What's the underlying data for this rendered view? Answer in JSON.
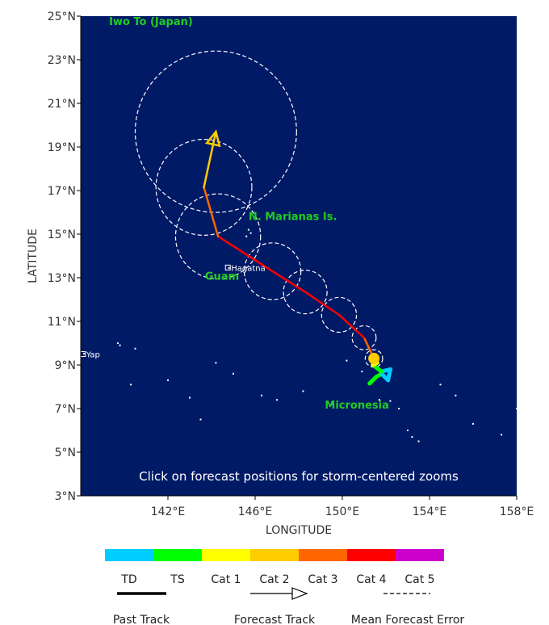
{
  "map": {
    "background_color": "#001a66",
    "land_color": "#ffffff",
    "lon_range": [
      138,
      158
    ],
    "lat_range": [
      3,
      25
    ],
    "axis": {
      "xlabel": "LONGITUDE",
      "ylabel": "LATITUDE",
      "x_ticks": [
        {
          "value": 142,
          "label": "142°E"
        },
        {
          "value": 146,
          "label": "146°E"
        },
        {
          "value": 150,
          "label": "150°E"
        },
        {
          "value": 154,
          "label": "154°E"
        },
        {
          "value": 158,
          "label": "158°E"
        }
      ],
      "y_ticks": [
        {
          "value": 25,
          "label": "25°N"
        },
        {
          "value": 23,
          "label": "23°N"
        },
        {
          "value": 21,
          "label": "21°N"
        },
        {
          "value": 19,
          "label": "19°N"
        },
        {
          "value": 17,
          "label": "17°N"
        },
        {
          "value": 15,
          "label": "15°N"
        },
        {
          "value": 13,
          "label": "13°N"
        },
        {
          "value": 11,
          "label": "11°N"
        },
        {
          "value": 9,
          "label": "9°N"
        },
        {
          "value": 7,
          "label": "7°N"
        },
        {
          "value": 5,
          "label": "5°N"
        },
        {
          "value": 3,
          "label": "3°N"
        }
      ]
    },
    "region_labels": [
      {
        "text": "Iwo To (Japan)",
        "lon": 139.3,
        "lat": 24.6
      },
      {
        "text": "N. Marianas Is.",
        "lon": 145.7,
        "lat": 15.65
      },
      {
        "text": "Guam",
        "lon": 143.7,
        "lat": 12.9
      },
      {
        "text": "Micronesia",
        "lon": 149.2,
        "lat": 7.0
      }
    ],
    "cities": [
      {
        "text": "Hagatna",
        "lon": 144.75,
        "lat": 13.47
      },
      {
        "text": "Yap",
        "lon": 138.1,
        "lat": 9.5
      }
    ],
    "islands": [
      {
        "lon": 144.8,
        "lat": 13.45
      },
      {
        "lon": 145.7,
        "lat": 15.2
      },
      {
        "lon": 145.6,
        "lat": 14.9
      },
      {
        "lon": 145.8,
        "lat": 15.05
      },
      {
        "lon": 138.15,
        "lat": 9.52
      },
      {
        "lon": 139.7,
        "lat": 10.0
      },
      {
        "lon": 139.8,
        "lat": 9.9
      },
      {
        "lon": 140.5,
        "lat": 9.75
      },
      {
        "lon": 140.3,
        "lat": 8.1
      },
      {
        "lon": 142.0,
        "lat": 8.3
      },
      {
        "lon": 143.0,
        "lat": 7.5
      },
      {
        "lon": 144.2,
        "lat": 9.1
      },
      {
        "lon": 145.0,
        "lat": 8.6
      },
      {
        "lon": 146.3,
        "lat": 7.6
      },
      {
        "lon": 147.0,
        "lat": 7.4
      },
      {
        "lon": 148.2,
        "lat": 7.8
      },
      {
        "lon": 149.5,
        "lat": 7.2
      },
      {
        "lon": 150.2,
        "lat": 9.2
      },
      {
        "lon": 150.9,
        "lat": 8.7
      },
      {
        "lon": 151.7,
        "lat": 7.4
      },
      {
        "lon": 152.2,
        "lat": 7.35
      },
      {
        "lon": 152.6,
        "lat": 7.0
      },
      {
        "lon": 153.2,
        "lat": 5.7
      },
      {
        "lon": 153.5,
        "lat": 5.5
      },
      {
        "lon": 154.5,
        "lat": 8.1
      },
      {
        "lon": 155.2,
        "lat": 7.6
      },
      {
        "lon": 156.0,
        "lat": 6.3
      },
      {
        "lon": 157.3,
        "lat": 5.8
      },
      {
        "lon": 158.0,
        "lat": 7.0
      },
      {
        "lon": 153.0,
        "lat": 6.0
      },
      {
        "lon": 151.8,
        "lat": 8.7
      },
      {
        "lon": 143.5,
        "lat": 6.5
      }
    ],
    "notice": "Click on forecast positions for storm-centered zooms"
  },
  "past_track": [
    {
      "lon": 151.25,
      "lat": 8.15,
      "cat": "TS"
    },
    {
      "lon": 151.55,
      "lat": 8.45,
      "cat": "TS"
    },
    {
      "lon": 151.8,
      "lat": 8.6,
      "cat": "TD"
    },
    {
      "lon": 152.1,
      "lat": 8.3,
      "cat": "TD"
    },
    {
      "lon": 152.15,
      "lat": 8.55,
      "cat": "TD"
    },
    {
      "lon": 152.2,
      "lat": 8.8,
      "cat": "TD"
    },
    {
      "lon": 151.8,
      "lat": 8.7,
      "cat": "TS"
    },
    {
      "lon": 151.4,
      "lat": 9.0,
      "cat": "Cat 1"
    },
    {
      "lon": 151.6,
      "lat": 9.1,
      "cat": "Cat 1"
    },
    {
      "lon": 151.45,
      "lat": 9.3,
      "cat": "Cat 2"
    }
  ],
  "current_position": {
    "lon": 151.45,
    "lat": 9.3,
    "cat": "Cat 2"
  },
  "forecast_track": [
    {
      "lon": 151.45,
      "lat": 9.3,
      "cat": "Cat 2",
      "error_radius_deg": 0.4
    },
    {
      "lon": 151.0,
      "lat": 10.25,
      "cat": "Cat 3",
      "error_radius_deg": 0.55
    },
    {
      "lon": 149.85,
      "lat": 11.3,
      "cat": "Cat 4",
      "error_radius_deg": 0.8
    },
    {
      "lon": 148.3,
      "lat": 12.35,
      "cat": "Cat 4",
      "error_radius_deg": 1.0
    },
    {
      "lon": 146.8,
      "lat": 13.3,
      "cat": "Cat 4",
      "error_radius_deg": 1.3
    },
    {
      "lon": 144.3,
      "lat": 14.9,
      "cat": "Cat 4",
      "error_radius_deg": 1.95
    },
    {
      "lon": 143.65,
      "lat": 17.15,
      "cat": "Cat 3",
      "error_radius_deg": 2.2
    },
    {
      "lon": 144.2,
      "lat": 19.7,
      "cat": "Cat 2",
      "error_radius_deg": 3.7
    }
  ],
  "legend": {
    "categories": [
      {
        "label": "TD",
        "color": "#00ccff"
      },
      {
        "label": "TS",
        "color": "#00ff00"
      },
      {
        "label": "Cat 1",
        "color": "#ffff00"
      },
      {
        "label": "Cat 2",
        "color": "#ffcc00"
      },
      {
        "label": "Cat 3",
        "color": "#ff6600"
      },
      {
        "label": "Cat 4",
        "color": "#ff0000"
      },
      {
        "label": "Cat 5",
        "color": "#cc00cc"
      }
    ],
    "past_track_label": "Past Track",
    "forecast_track_label": "Forecast Track",
    "error_label": "Mean Forecast Error"
  }
}
